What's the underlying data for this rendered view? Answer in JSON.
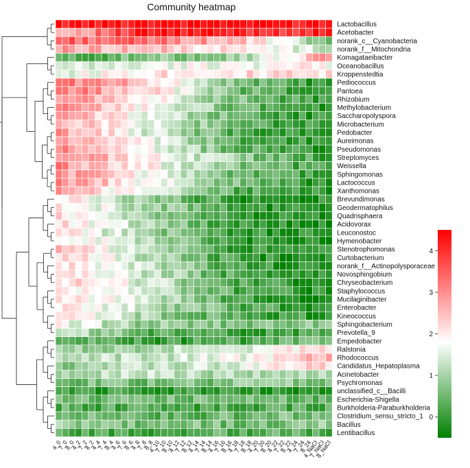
{
  "chart_data": {
    "type": "heatmap",
    "title": "Community heatmap",
    "rows": [
      "Lactobacillus",
      "Acetobacter",
      "norank_c__Cyanobacteria",
      "norank_f__Mitochondria",
      "Komagataeibacter",
      "Oceanobacillus",
      "Kroppenstedtia",
      "Pediococcus",
      "Pantoea",
      "Rhizobium",
      "Methylobacterium",
      "Saccharopolyspora",
      "Microbacterium",
      "Pedobacter",
      "Aureimonas",
      "Pseudomonas",
      "Streptomyces",
      "Weissella",
      "Sphingomonas",
      "Lactococcus",
      "Xanthomonas",
      "Brevundimonas",
      "Geodermatophilus",
      "Quadrisphaera",
      "Acidovorax",
      "Leuconostoc",
      "Hymenobacter",
      "Stenotrophomonas",
      "Curtobacterium",
      "norank_f__Actinopolysporaceae",
      "Novosphingobium",
      "Chryseobacterium",
      "Staphylococcus",
      "Mucilaginibacter",
      "Enterobacter",
      "Kineococcus",
      "Sphingobacterium",
      "Prevotella_9",
      "Empedobacter",
      "Ralstonia",
      "Rhodococcus",
      "Candidatus_Hepatoplasma",
      "Acinetobacter",
      "Psychromonas",
      "unclassified_c__Bacilli",
      "Escherichia-Shigella",
      "Burkholderia-Paraburkholderia",
      "Clostridium_sensu_stricto_1",
      "Bacillus",
      "Lentibacillus"
    ],
    "columns": [
      "4_0",
      "7_0",
      "8_0",
      "4_2",
      "7_2",
      "8_2",
      "4_4",
      "7_4",
      "8_4",
      "4_6",
      "7_6",
      "8_6",
      "4_8",
      "7_8",
      "8_8",
      "4_10",
      "7_10",
      "8_10",
      "4_12",
      "7_12",
      "8_12",
      "4_14",
      "7_14",
      "8_14",
      "4_16",
      "7_16",
      "8_16",
      "4_18",
      "7_18",
      "8_18",
      "4_20",
      "7_20",
      "8_20",
      "4_22",
      "7_22",
      "8_22",
      "4_24",
      "7_24",
      "8_24",
      "4_NaCl",
      "7_NaCl",
      "8_NaCl"
    ],
    "row_profiles": [
      [
        4.4,
        4.4,
        4.4,
        4.3
      ],
      [
        2.5,
        4.2,
        4.1,
        4.0
      ],
      [
        3.5,
        3.3,
        2.5,
        0.5
      ],
      [
        2.8,
        2.5,
        2.0,
        1.3
      ],
      [
        0.2,
        0.6,
        1.0,
        2.8
      ],
      [
        1.2,
        1.6,
        1.8,
        1.9
      ],
      [
        1.5,
        2.2,
        2.2,
        2.0
      ],
      [
        3.3,
        2.4,
        0.6,
        -0.1
      ],
      [
        3.3,
        2.3,
        0.5,
        -0.1
      ],
      [
        3.1,
        2.0,
        0.6,
        -0.1
      ],
      [
        3.0,
        1.8,
        0.5,
        -0.1
      ],
      [
        2.8,
        1.7,
        0.3,
        -0.1
      ],
      [
        2.8,
        1.6,
        0.3,
        -0.1
      ],
      [
        2.9,
        1.4,
        0.2,
        -0.1
      ],
      [
        2.9,
        1.6,
        0.3,
        -0.1
      ],
      [
        3.0,
        1.8,
        0.3,
        -0.1
      ],
      [
        3.0,
        2.0,
        0.8,
        0.1
      ],
      [
        3.0,
        1.9,
        0.6,
        0.0
      ],
      [
        3.0,
        1.8,
        0.5,
        -0.1
      ],
      [
        3.0,
        1.8,
        0.5,
        -0.1
      ],
      [
        2.8,
        1.5,
        0.3,
        -0.1
      ],
      [
        2.2,
        0.8,
        -0.1,
        -0.2
      ],
      [
        2.2,
        1.0,
        -0.1,
        -0.2
      ],
      [
        2.1,
        0.9,
        -0.1,
        -0.2
      ],
      [
        2.2,
        1.1,
        -0.1,
        -0.2
      ],
      [
        2.0,
        1.0,
        -0.1,
        -0.2
      ],
      [
        2.2,
        1.1,
        -0.1,
        -0.2
      ],
      [
        2.4,
        1.2,
        -0.1,
        -0.2
      ],
      [
        2.3,
        1.2,
        -0.1,
        -0.2
      ],
      [
        2.3,
        1.3,
        0.1,
        -0.2
      ],
      [
        2.1,
        1.3,
        0.1,
        -0.2
      ],
      [
        2.3,
        1.4,
        0.2,
        -0.2
      ],
      [
        2.3,
        1.3,
        0.2,
        -0.2
      ],
      [
        2.2,
        1.3,
        0.2,
        -0.2
      ],
      [
        2.2,
        1.2,
        0.3,
        -0.2
      ],
      [
        2.0,
        1.0,
        0.2,
        -0.1
      ],
      [
        1.7,
        0.8,
        0.6,
        0.9
      ],
      [
        1.4,
        0.3,
        0.1,
        0.2
      ],
      [
        0.5,
        0.0,
        0.2,
        0.4
      ],
      [
        0.9,
        1.1,
        1.5,
        2.1
      ],
      [
        1.0,
        1.3,
        1.6,
        2.7
      ],
      [
        0.8,
        1.2,
        1.5,
        2.4
      ],
      [
        1.2,
        1.2,
        1.1,
        1.3
      ],
      [
        0.5,
        0.6,
        0.7,
        0.8
      ],
      [
        -0.1,
        0.0,
        0.0,
        -0.1
      ],
      [
        0.6,
        0.5,
        0.5,
        0.5
      ],
      [
        0.3,
        0.2,
        0.2,
        0.2
      ],
      [
        0.5,
        0.4,
        0.5,
        0.6
      ],
      [
        0.8,
        0.6,
        0.6,
        0.8
      ],
      [
        0.2,
        0.2,
        0.3,
        0.3
      ]
    ],
    "value_note": "Per-row log abundance profile across the 42 columns (start, 1/3, 2/3, end), estimated from the colour scale.",
    "colorbar": {
      "ticks": [
        0,
        1,
        2,
        3,
        4
      ],
      "range": [
        -0.5,
        4.5
      ],
      "colors": [
        "#008000",
        "#ffffff",
        "#ff0000"
      ]
    }
  }
}
